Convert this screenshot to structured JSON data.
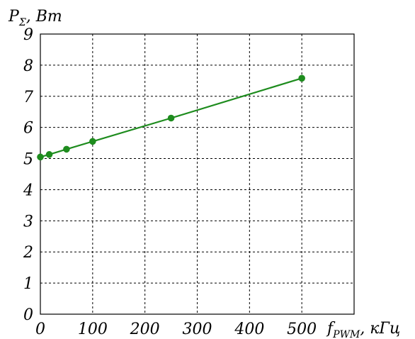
{
  "chart_data": {
    "type": "line",
    "x": [
      0,
      17,
      50,
      100,
      250,
      500
    ],
    "series": [
      {
        "values": [
          5.05,
          5.13,
          5.3,
          5.55,
          6.3,
          7.58
        ],
        "color": "#1e8c1e"
      }
    ],
    "xlim": [
      0,
      600
    ],
    "ylim": [
      0,
      9
    ],
    "x_ticks": [
      0,
      100,
      200,
      300,
      400,
      500
    ],
    "y_ticks": [
      0,
      1,
      2,
      3,
      4,
      5,
      6,
      7,
      8,
      9
    ],
    "grid": true,
    "ylabel": {
      "main": "P",
      "sub": "Σ",
      "unit": ", Вт"
    },
    "xlabel": {
      "main": "f",
      "sub": "PWM",
      "unit": ", кГц"
    }
  }
}
